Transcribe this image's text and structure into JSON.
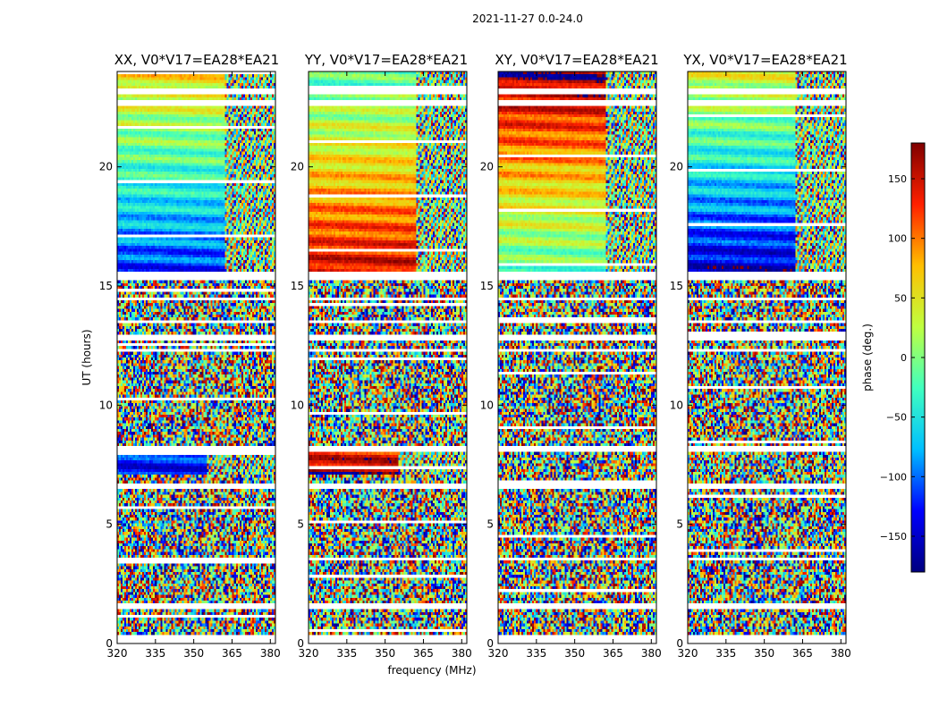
{
  "figure_title": "2021-11-27 0.0-24.0",
  "colors": {
    "stops": [
      "#00007f",
      "#0000ff",
      "#00bfff",
      "#40ffbf",
      "#bfff40",
      "#ffbf00",
      "#ff2000",
      "#7f0000"
    ]
  },
  "chart_data": {
    "type": "heatmap",
    "xlabel": "frequency (MHz)",
    "ylabel": "UT (hours)",
    "xlim": [
      320,
      382
    ],
    "ylim": [
      0,
      24
    ],
    "xticks": [
      320,
      335,
      350,
      365,
      380
    ],
    "yticks": [
      0,
      5,
      10,
      15,
      20
    ],
    "colorbar": {
      "label": "phase (deg.)",
      "range": [
        -180,
        180
      ],
      "ticks": [
        150,
        100,
        50,
        0,
        -50,
        -100,
        -150
      ]
    },
    "panels": [
      {
        "title": "XX, V0*V17=EA28*EA21",
        "coherent_segments": [
          {
            "ut_start": 15.5,
            "ut_end": 24.0,
            "phase_low_ut": -120,
            "phase_high_ut": 60,
            "decorrelate_above_mhz": 362
          },
          {
            "ut_start": 7.1,
            "ut_end": 8.0,
            "phase_low_ut": -130,
            "phase_high_ut": -120,
            "decorrelate_above_mhz": 355
          }
        ]
      },
      {
        "title": "YY, V0*V17=EA28*EA21",
        "coherent_segments": [
          {
            "ut_start": 15.5,
            "ut_end": 24.0,
            "phase_low_ut": 150,
            "phase_high_ut": -20,
            "decorrelate_above_mhz": 362
          },
          {
            "ut_start": 7.1,
            "ut_end": 8.0,
            "phase_low_ut": 170,
            "phase_high_ut": 130,
            "decorrelate_above_mhz": 355
          }
        ]
      },
      {
        "title": "XY, V0*V17=EA28*EA21",
        "coherent_segments": [
          {
            "ut_start": 15.5,
            "ut_end": 24.0,
            "phase_low_ut": -20,
            "phase_high_ut": 170,
            "decorrelate_above_mhz": 362
          }
        ]
      },
      {
        "title": "YX, V0*V17=EA28*EA21",
        "coherent_segments": [
          {
            "ut_start": 15.5,
            "ut_end": 24.0,
            "phase_low_ut": -150,
            "phase_high_ut": 40,
            "decorrelate_above_mhz": 362
          }
        ]
      }
    ],
    "flagged_ut_ranges": [
      [
        0,
        0.4
      ],
      [
        1.4,
        1.65
      ],
      [
        3.5,
        3.6
      ],
      [
        6.5,
        6.7
      ],
      [
        8.1,
        8.25
      ],
      [
        12.2,
        12.35
      ],
      [
        12.7,
        12.95
      ],
      [
        13.4,
        13.55
      ],
      [
        14.35,
        14.5
      ],
      [
        15.2,
        15.55
      ],
      [
        22.6,
        22.75
      ],
      [
        23.1,
        23.25
      ]
    ]
  }
}
